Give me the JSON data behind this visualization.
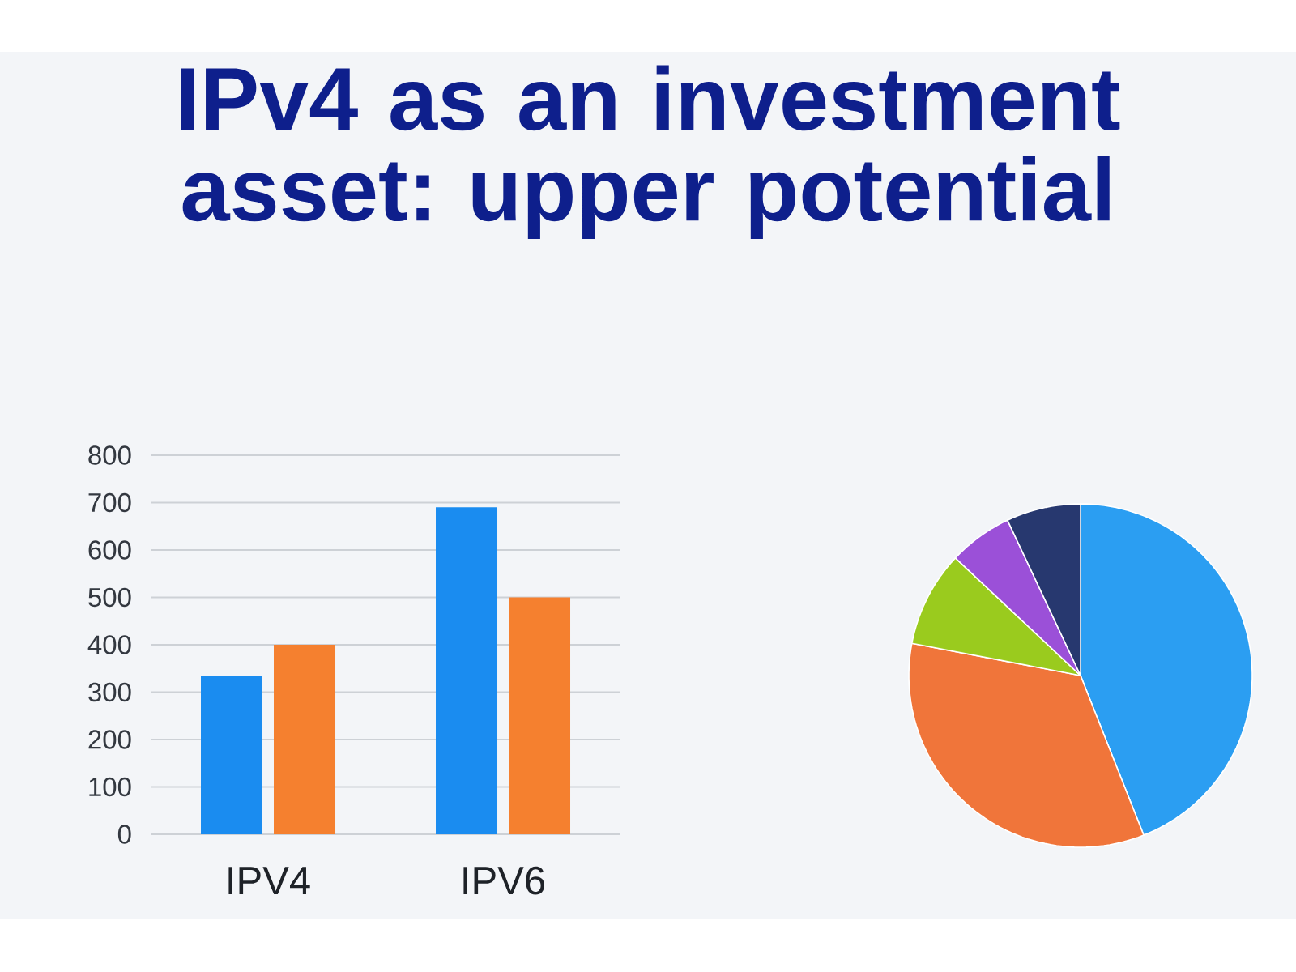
{
  "chart_data": [
    {
      "type": "bar",
      "title": "IPv4 as an investment asset: upper potential",
      "categories": [
        "IPV4",
        "IPV6"
      ],
      "series": [
        {
          "color": "#1a8cf0",
          "values": [
            335,
            690
          ]
        },
        {
          "color": "#f5802f",
          "values": [
            400,
            500
          ]
        }
      ],
      "ylim": [
        0,
        800
      ],
      "yticks": [
        0,
        100,
        200,
        300,
        400,
        500,
        600,
        700,
        800
      ],
      "grid": "y"
    },
    {
      "type": "pie",
      "categories": [
        null,
        null,
        null,
        null,
        null
      ],
      "values": [
        44,
        34,
        9,
        6,
        7
      ],
      "colors": [
        "#2b9ef2",
        "#f0753a",
        "#9acb1e",
        "#9b50d8",
        "#27386f"
      ]
    }
  ]
}
